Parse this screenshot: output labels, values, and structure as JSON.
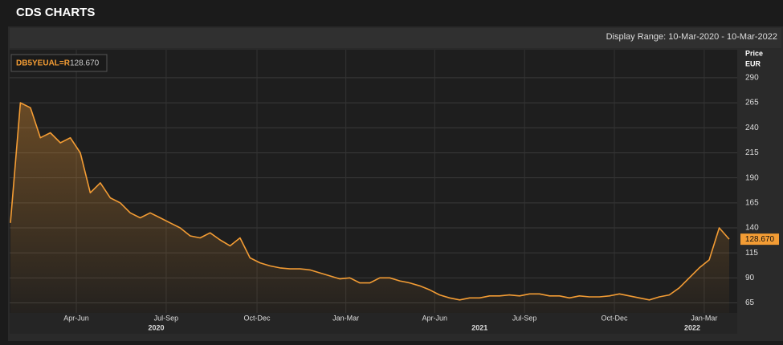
{
  "header": {
    "title": "CDS CHARTS"
  },
  "chart_data": {
    "type": "line",
    "subtitle": "Display Range: 10-Mar-2020 - 10-Mar-2022",
    "y_label": "Price",
    "y_unit": "EUR",
    "series": [
      {
        "name": "DB5YEUAL=R",
        "color": "#f39c34",
        "values": [
          145,
          265,
          260,
          230,
          235,
          225,
          230,
          215,
          175,
          185,
          170,
          165,
          155,
          150,
          155,
          150,
          145,
          140,
          132,
          130,
          135,
          128,
          122,
          130,
          110,
          105,
          102,
          100,
          99,
          99,
          98,
          95,
          92,
          89,
          90,
          85,
          85,
          90,
          90,
          87,
          85,
          82,
          78,
          73,
          70,
          68,
          70,
          70,
          72,
          72,
          73,
          72,
          74,
          74,
          72,
          72,
          70,
          72,
          71,
          71,
          72,
          74,
          72,
          70,
          68,
          71,
          73,
          80,
          90,
          100,
          108,
          140,
          128.67
        ]
      }
    ],
    "current": {
      "value": 128.67,
      "label": "128.670"
    },
    "xlim": [
      0,
      72
    ],
    "xticks": [
      {
        "value": 6.6,
        "label": "Apr-Jun"
      },
      {
        "value": 15.6,
        "label": "Jul-Sep"
      },
      {
        "value": 24.7,
        "label": "Oct-Dec"
      },
      {
        "value": 33.6,
        "label": "Jan-Mar"
      },
      {
        "value": 42.5,
        "label": "Apr-Jun"
      },
      {
        "value": 51.5,
        "label": "Jul-Sep"
      },
      {
        "value": 60.5,
        "label": "Oct-Dec"
      },
      {
        "value": 69.5,
        "label": "Jan-Mar"
      }
    ],
    "year_ticks": [
      {
        "value": 14.6,
        "label": "2020"
      },
      {
        "value": 47,
        "label": "2021"
      },
      {
        "value": 68.3,
        "label": "2022"
      }
    ],
    "ylim": [
      55,
      318
    ],
    "yticks": [
      65,
      90,
      115,
      140,
      165,
      190,
      215,
      240,
      265,
      290
    ],
    "grid": true
  }
}
